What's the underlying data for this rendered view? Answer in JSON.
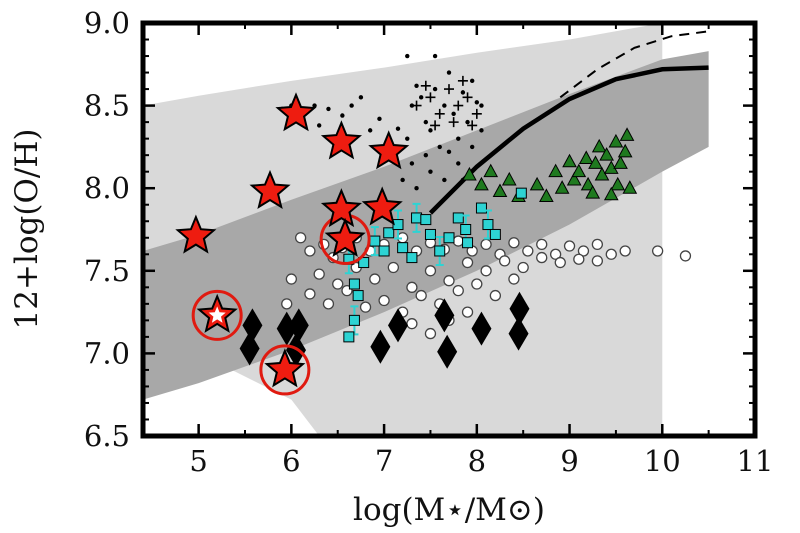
{
  "chart_data": {
    "type": "scatter",
    "title": "",
    "xlabel": "log(M⋆/M⊙)",
    "ylabel": "12+log(O/H)",
    "xlim": [
      4.4,
      11.0
    ],
    "ylim": [
      6.5,
      9.0
    ],
    "x_ticks": [
      "5",
      "6",
      "7",
      "8",
      "9",
      "10",
      "11"
    ],
    "y_ticks": [
      "6.5",
      "7.0",
      "7.5",
      "8.0",
      "8.5",
      "9.0"
    ],
    "colors": {
      "band_outer": "#d9d9d9",
      "band_inner": "#a8a8a8",
      "star_fill": "#ee1c10",
      "circle_stroke": "#e01a10",
      "square_fill": "#2dd3d3",
      "triangle_fill": "#1f7a1f",
      "diamond_fill": "#000000",
      "open_circle_stroke": "#444444",
      "curve": "#000000"
    },
    "series": [
      {
        "marker": "star",
        "values": [
          [
            4.97,
            7.71
          ],
          [
            5.77,
            7.98
          ],
          [
            6.05,
            8.45
          ],
          [
            6.54,
            8.28
          ],
          [
            7.05,
            8.22
          ],
          [
            6.54,
            7.87
          ],
          [
            6.98,
            7.88
          ],
          [
            6.58,
            7.69
          ],
          [
            5.2,
            7.23
          ],
          [
            5.93,
            6.9
          ]
        ]
      },
      {
        "marker": "open-circle-highlight",
        "values": [
          [
            6.58,
            7.69
          ],
          [
            5.2,
            7.23
          ],
          [
            5.93,
            6.9
          ]
        ]
      },
      {
        "marker": "diamond",
        "values": [
          [
            5.58,
            7.17
          ],
          [
            5.55,
            7.03
          ],
          [
            5.95,
            7.15
          ],
          [
            6.08,
            7.17
          ],
          [
            6.05,
            7.02
          ],
          [
            6.96,
            7.04
          ],
          [
            7.15,
            7.17
          ],
          [
            7.65,
            7.23
          ],
          [
            7.68,
            7.01
          ],
          [
            8.05,
            7.15
          ],
          [
            8.46,
            7.27
          ],
          [
            8.45,
            7.12
          ]
        ]
      },
      {
        "marker": "square",
        "values": [
          [
            6.62,
            7.57
          ],
          [
            6.68,
            7.42
          ],
          [
            6.72,
            7.35
          ],
          [
            6.68,
            7.2
          ],
          [
            6.62,
            7.1
          ],
          [
            6.78,
            7.55
          ],
          [
            6.9,
            7.68
          ],
          [
            7.0,
            7.62
          ],
          [
            7.05,
            7.73
          ],
          [
            7.15,
            7.78
          ],
          [
            7.2,
            7.64
          ],
          [
            7.3,
            7.58
          ],
          [
            7.35,
            7.82
          ],
          [
            7.45,
            7.81
          ],
          [
            7.5,
            7.72
          ],
          [
            7.6,
            7.62
          ],
          [
            7.7,
            7.7
          ],
          [
            7.8,
            7.82
          ],
          [
            7.88,
            7.75
          ],
          [
            7.9,
            7.67
          ],
          [
            8.05,
            7.88
          ],
          [
            8.12,
            7.78
          ],
          [
            8.2,
            7.72
          ],
          [
            8.48,
            7.97
          ]
        ]
      },
      {
        "marker": "triangle",
        "values": [
          [
            7.92,
            8.08
          ],
          [
            8.05,
            8.02
          ],
          [
            8.15,
            8.1
          ],
          [
            8.25,
            7.98
          ],
          [
            8.35,
            8.05
          ],
          [
            8.45,
            7.95
          ],
          [
            8.85,
            8.1
          ],
          [
            8.92,
            8.0
          ],
          [
            9.0,
            8.16
          ],
          [
            9.05,
            8.05
          ],
          [
            9.1,
            8.1
          ],
          [
            9.18,
            8.18
          ],
          [
            9.2,
            8.02
          ],
          [
            9.28,
            8.15
          ],
          [
            9.32,
            8.25
          ],
          [
            9.35,
            8.08
          ],
          [
            9.4,
            8.2
          ],
          [
            9.45,
            8.12
          ],
          [
            9.5,
            8.28
          ],
          [
            9.52,
            8.02
          ],
          [
            9.55,
            8.15
          ],
          [
            9.6,
            8.22
          ],
          [
            9.62,
            8.32
          ],
          [
            9.65,
            8.0
          ],
          [
            8.65,
            8.02
          ],
          [
            8.75,
            7.95
          ],
          [
            9.25,
            7.97
          ],
          [
            9.45,
            7.96
          ]
        ]
      },
      {
        "marker": "open-circle",
        "values": [
          [
            6.1,
            7.7
          ],
          [
            6.2,
            7.62
          ],
          [
            6.35,
            7.66
          ],
          [
            6.45,
            7.58
          ],
          [
            6.55,
            7.64
          ],
          [
            6.7,
            7.7
          ],
          [
            6.85,
            7.62
          ],
          [
            7.0,
            7.66
          ],
          [
            7.2,
            7.7
          ],
          [
            7.35,
            7.62
          ],
          [
            7.5,
            7.67
          ],
          [
            7.65,
            7.63
          ],
          [
            7.8,
            7.68
          ],
          [
            7.95,
            7.62
          ],
          [
            8.1,
            7.66
          ],
          [
            8.25,
            7.6
          ],
          [
            8.4,
            7.67
          ],
          [
            8.55,
            7.62
          ],
          [
            8.7,
            7.66
          ],
          [
            8.85,
            7.6
          ],
          [
            9.0,
            7.65
          ],
          [
            9.15,
            7.62
          ],
          [
            9.3,
            7.66
          ],
          [
            9.45,
            7.6
          ],
          [
            9.6,
            7.62
          ],
          [
            9.95,
            7.62
          ],
          [
            10.25,
            7.59
          ],
          [
            6.3,
            7.48
          ],
          [
            6.5,
            7.42
          ],
          [
            6.7,
            7.52
          ],
          [
            6.9,
            7.45
          ],
          [
            7.1,
            7.52
          ],
          [
            7.3,
            7.4
          ],
          [
            7.5,
            7.5
          ],
          [
            7.7,
            7.44
          ],
          [
            7.9,
            7.55
          ],
          [
            8.1,
            7.5
          ],
          [
            8.3,
            7.56
          ],
          [
            8.5,
            7.52
          ],
          [
            8.7,
            7.58
          ],
          [
            8.9,
            7.55
          ],
          [
            9.1,
            7.57
          ],
          [
            9.3,
            7.56
          ],
          [
            6.2,
            7.36
          ],
          [
            6.4,
            7.3
          ],
          [
            6.6,
            7.38
          ],
          [
            6.8,
            7.28
          ],
          [
            7.0,
            7.32
          ],
          [
            7.2,
            7.25
          ],
          [
            7.4,
            7.35
          ],
          [
            7.6,
            7.3
          ],
          [
            7.8,
            7.38
          ],
          [
            8.0,
            7.42
          ],
          [
            8.2,
            7.35
          ],
          [
            8.4,
            7.45
          ],
          [
            7.3,
            7.18
          ],
          [
            7.5,
            7.12
          ],
          [
            7.7,
            7.2
          ],
          [
            7.9,
            7.25
          ],
          [
            6.0,
            7.45
          ],
          [
            5.95,
            7.3
          ]
        ]
      },
      {
        "marker": "dot",
        "values": [
          [
            5.9,
            8.48
          ],
          [
            6.0,
            8.5
          ],
          [
            6.15,
            8.45
          ],
          [
            6.25,
            8.5
          ],
          [
            6.3,
            8.38
          ],
          [
            6.4,
            8.48
          ],
          [
            6.55,
            8.44
          ],
          [
            6.65,
            8.5
          ],
          [
            6.75,
            8.55
          ],
          [
            6.85,
            8.35
          ],
          [
            6.95,
            8.42
          ],
          [
            7.1,
            8.2
          ],
          [
            7.15,
            8.36
          ],
          [
            7.25,
            8.3
          ],
          [
            7.3,
            8.5
          ],
          [
            7.35,
            8.62
          ],
          [
            7.4,
            8.55
          ],
          [
            7.45,
            8.4
          ],
          [
            7.5,
            8.35
          ],
          [
            7.55,
            8.6
          ],
          [
            7.6,
            8.25
          ],
          [
            7.65,
            8.5
          ],
          [
            7.7,
            8.7
          ],
          [
            7.75,
            8.45
          ],
          [
            7.8,
            8.3
          ],
          [
            7.85,
            8.58
          ],
          [
            7.9,
            8.4
          ],
          [
            7.95,
            8.65
          ],
          [
            8.0,
            8.52
          ],
          [
            8.05,
            8.35
          ],
          [
            7.25,
            8.8
          ],
          [
            7.35,
            8.0
          ],
          [
            7.5,
            8.1
          ],
          [
            7.65,
            8.05
          ],
          [
            7.8,
            8.15
          ],
          [
            7.2,
            8.05
          ],
          [
            7.3,
            8.15
          ],
          [
            7.45,
            8.2
          ],
          [
            7.7,
            8.22
          ],
          [
            7.85,
            8.05
          ],
          [
            7.95,
            8.25
          ],
          [
            8.05,
            8.5
          ],
          [
            7.55,
            8.8
          ]
        ]
      },
      {
        "marker": "cross",
        "values": [
          [
            7.35,
            8.5
          ],
          [
            7.5,
            8.55
          ],
          [
            7.6,
            8.45
          ],
          [
            7.7,
            8.6
          ],
          [
            7.8,
            8.5
          ],
          [
            7.9,
            8.55
          ],
          [
            8.0,
            8.45
          ],
          [
            7.55,
            8.38
          ],
          [
            7.75,
            8.4
          ],
          [
            7.45,
            8.62
          ],
          [
            7.85,
            8.65
          ],
          [
            7.95,
            8.38
          ]
        ]
      },
      {
        "marker": "line-solid",
        "values": [
          [
            7.5,
            7.85
          ],
          [
            8.0,
            8.13
          ],
          [
            8.5,
            8.36
          ],
          [
            9.0,
            8.54
          ],
          [
            9.5,
            8.66
          ],
          [
            10.0,
            8.72
          ],
          [
            10.5,
            8.73
          ]
        ]
      },
      {
        "marker": "line-dashed",
        "values": [
          [
            8.9,
            8.55
          ],
          [
            9.3,
            8.72
          ],
          [
            9.7,
            8.85
          ],
          [
            10.1,
            8.92
          ],
          [
            10.5,
            8.95
          ]
        ]
      }
    ],
    "bands": [
      {
        "name": "outer",
        "upper": [
          [
            4.4,
            8.5
          ],
          [
            5.0,
            8.56
          ],
          [
            6.0,
            8.65
          ],
          [
            7.0,
            8.73
          ],
          [
            8.0,
            8.82
          ],
          [
            9.0,
            8.9
          ],
          [
            10.0,
            9.0
          ]
        ],
        "lower": [
          [
            4.4,
            7.2
          ],
          [
            5.0,
            7.0
          ],
          [
            6.0,
            6.72
          ],
          [
            6.3,
            6.5
          ],
          [
            10.0,
            6.5
          ]
        ]
      },
      {
        "name": "inner",
        "upper": [
          [
            4.4,
            7.62
          ],
          [
            5.0,
            7.72
          ],
          [
            6.0,
            7.93
          ],
          [
            7.0,
            8.13
          ],
          [
            8.0,
            8.35
          ],
          [
            9.0,
            8.57
          ],
          [
            10.0,
            8.78
          ],
          [
            10.5,
            8.83
          ]
        ],
        "lower": [
          [
            4.4,
            6.72
          ],
          [
            5.0,
            6.82
          ],
          [
            6.0,
            7.02
          ],
          [
            7.0,
            7.25
          ],
          [
            8.0,
            7.5
          ],
          [
            9.0,
            7.78
          ],
          [
            10.0,
            8.1
          ],
          [
            10.5,
            8.25
          ]
        ]
      }
    ]
  }
}
